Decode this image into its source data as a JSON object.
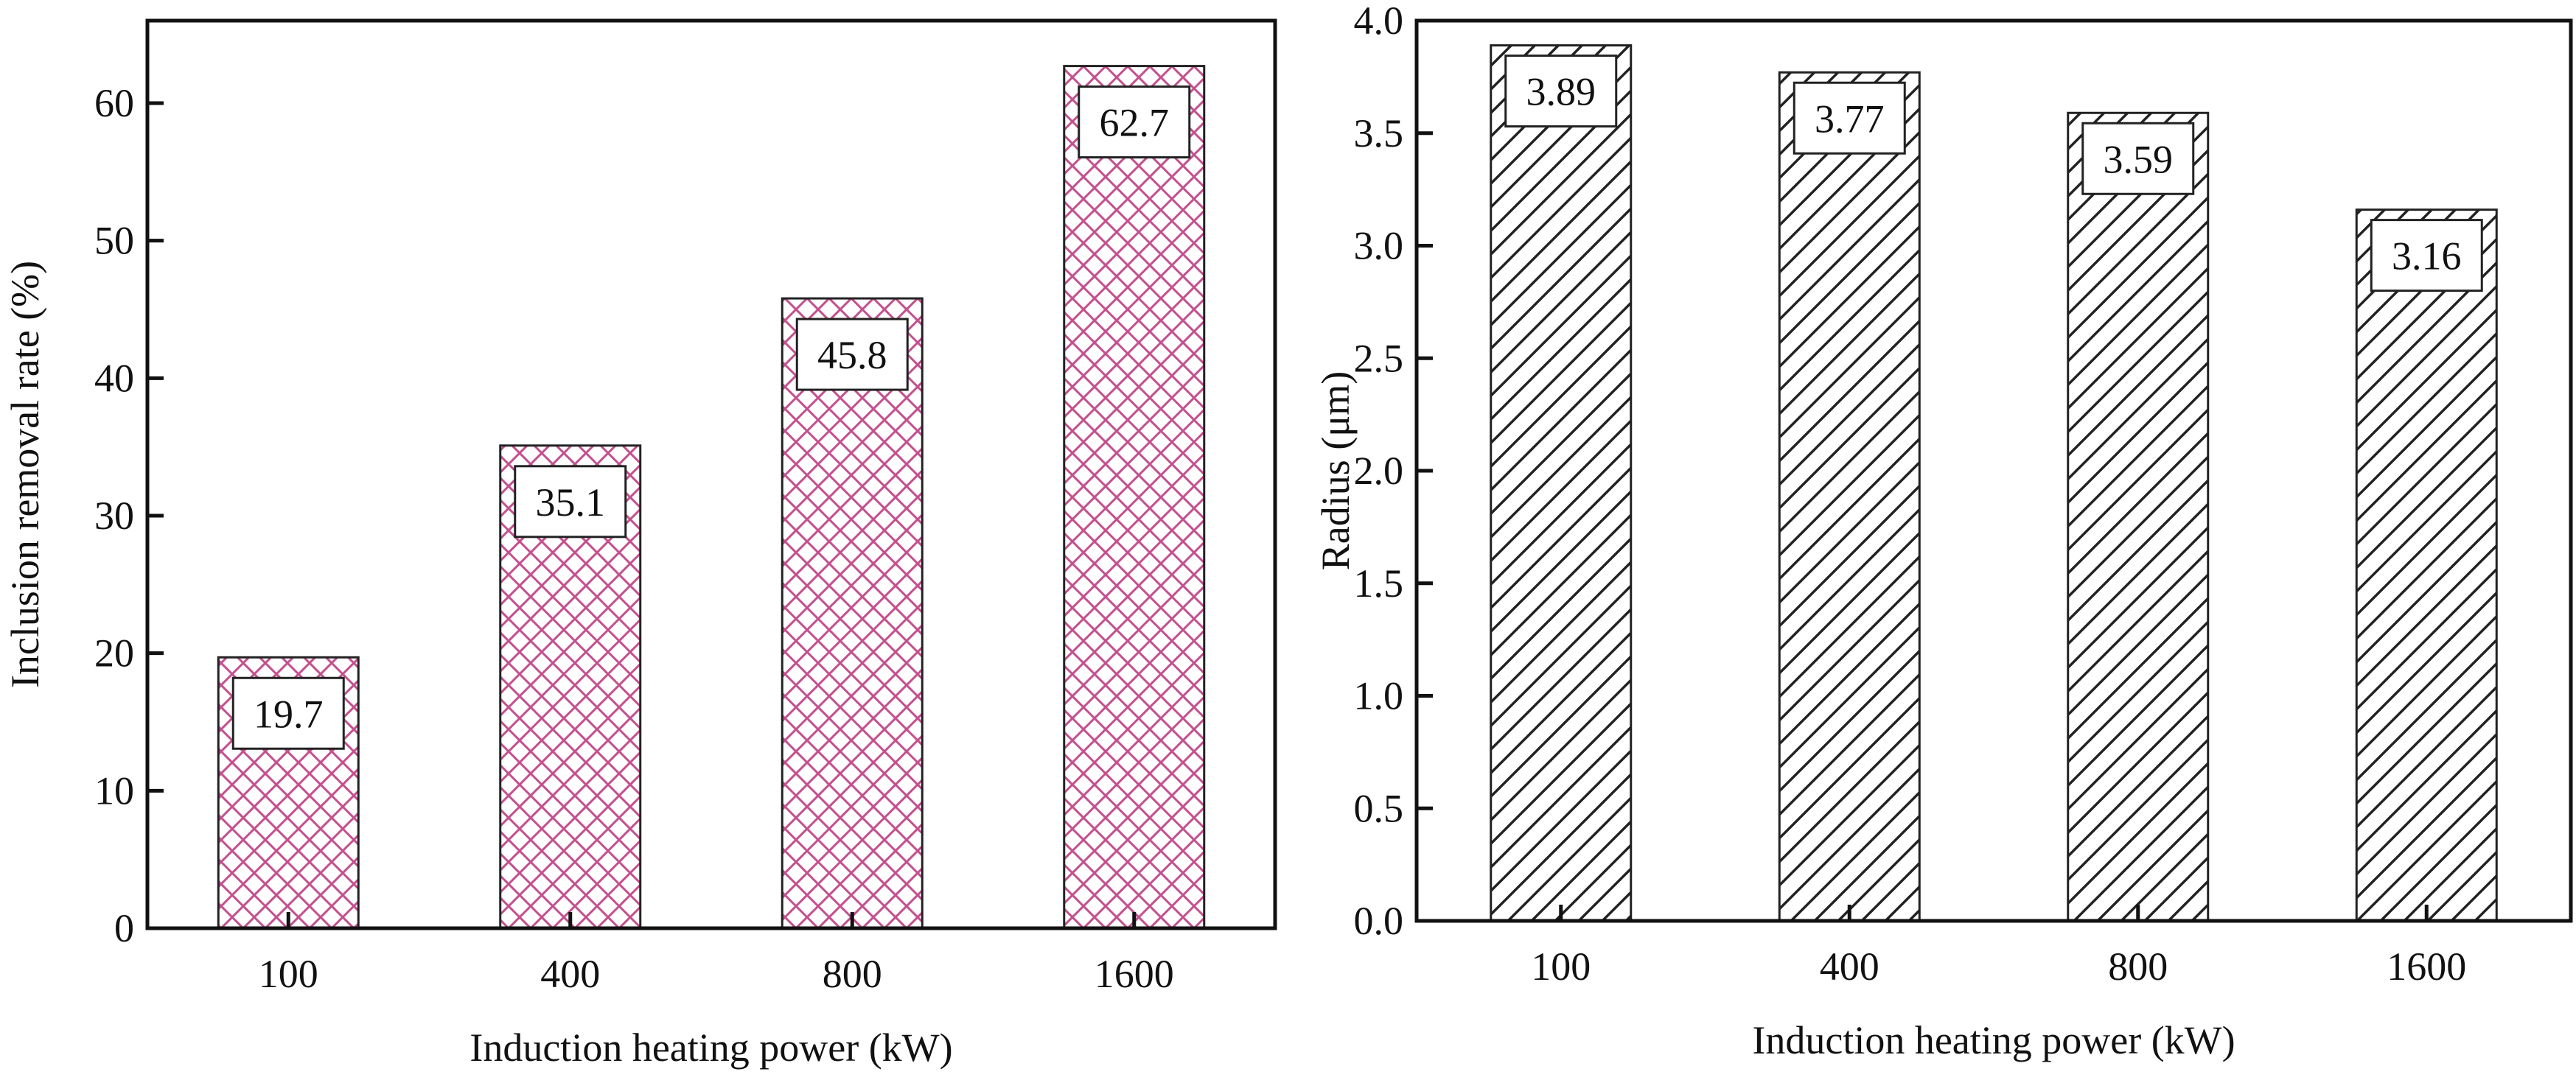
{
  "chart_data": [
    {
      "type": "bar",
      "categories": [
        "100",
        "400",
        "800",
        "1600"
      ],
      "values": [
        19.7,
        35.1,
        45.8,
        62.7
      ],
      "data_labels": [
        "19.7",
        "35.1",
        "45.8",
        "62.7"
      ],
      "title": "",
      "xlabel": "Induction heating power (kW)",
      "ylabel": "Inclusion removal rate (%)",
      "ylim": [
        0,
        66
      ],
      "yticks": [
        0,
        10,
        20,
        30,
        40,
        50,
        60
      ],
      "ytick_labels": [
        "0",
        "10",
        "20",
        "30",
        "40",
        "50",
        "60"
      ],
      "grid": false,
      "hatch": "crosshatch",
      "bar_color": "#c4508e"
    },
    {
      "type": "bar",
      "categories": [
        "100",
        "400",
        "800",
        "1600"
      ],
      "values": [
        3.89,
        3.77,
        3.59,
        3.16
      ],
      "data_labels": [
        "3.89",
        "3.77",
        "3.59",
        "3.16"
      ],
      "title": "",
      "xlabel": "Induction heating power (kW)",
      "ylabel": "Radius (μm)",
      "ylim": [
        0,
        4.0
      ],
      "yticks": [
        0,
        0.5,
        1.0,
        1.5,
        2.0,
        2.5,
        3.0,
        3.5,
        4.0
      ],
      "ytick_labels": [
        "0.0",
        "0.5",
        "1.0",
        "1.5",
        "2.0",
        "2.5",
        "3.0",
        "3.5",
        "4.0"
      ],
      "grid": false,
      "hatch": "diagonal",
      "bar_color": "#222222"
    }
  ]
}
